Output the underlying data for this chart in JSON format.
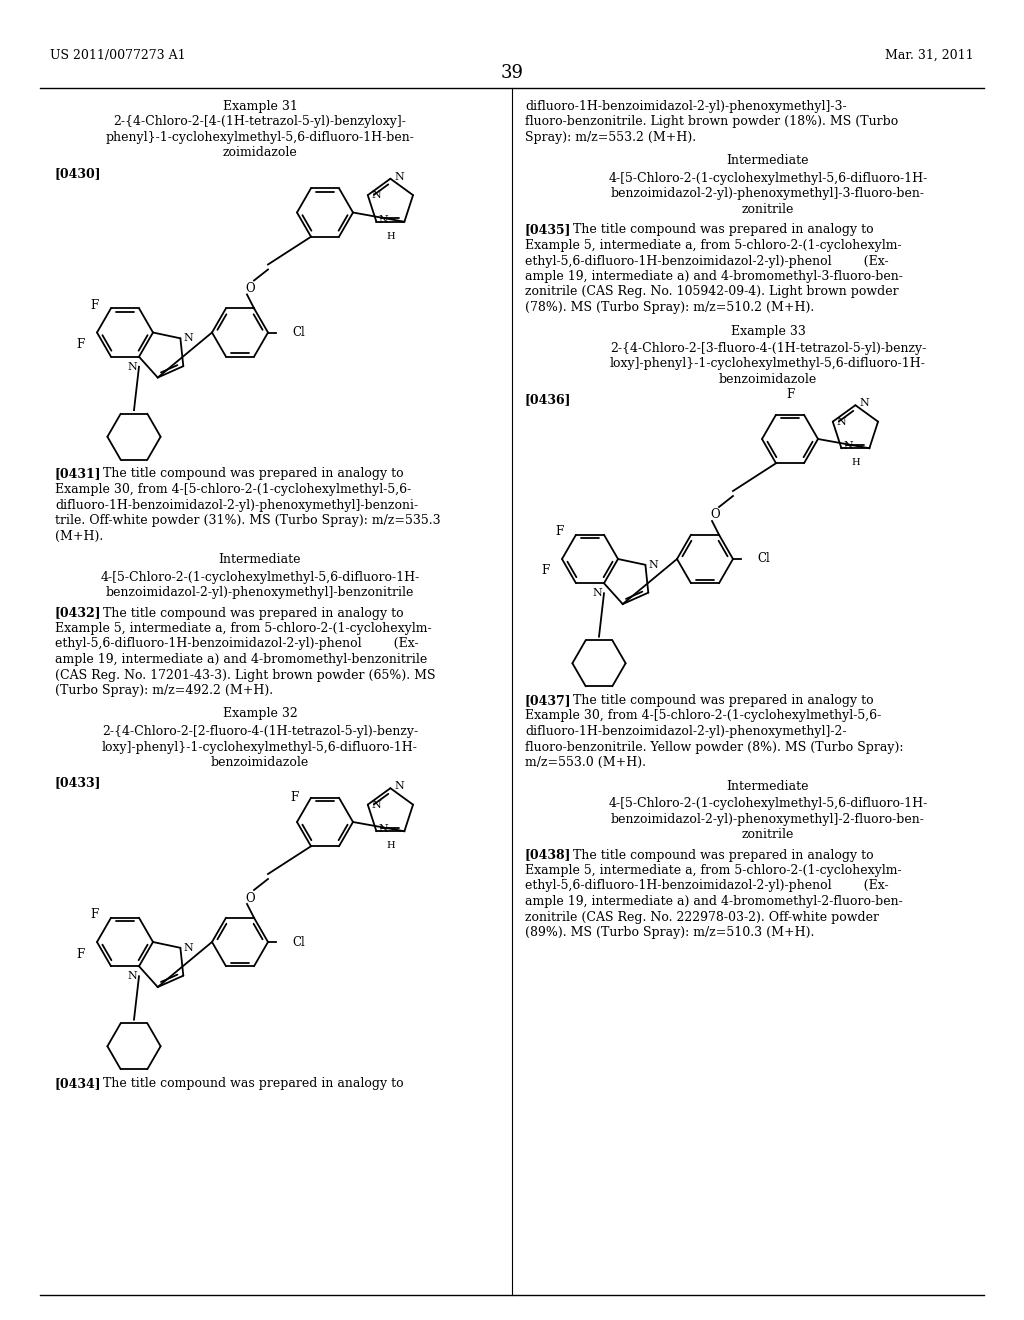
{
  "page_num": "39",
  "header_left": "US 2011/0077273 A1",
  "header_right": "Mar. 31, 2011",
  "background_color": "#ffffff"
}
